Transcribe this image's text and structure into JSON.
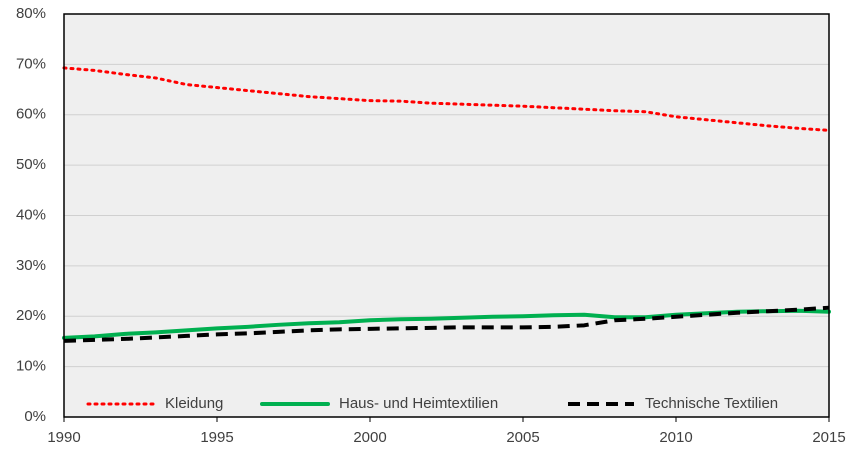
{
  "chart_data": {
    "type": "line",
    "x": [
      1990,
      1991,
      1992,
      1993,
      1994,
      1995,
      1996,
      1997,
      1998,
      1999,
      2000,
      2001,
      2002,
      2003,
      2004,
      2005,
      2006,
      2007,
      2008,
      2009,
      2010,
      2011,
      2012,
      2013,
      2014,
      2015
    ],
    "series": [
      {
        "name": "Kleidung",
        "color": "#ff0000",
        "style": "dotted",
        "values": [
          69.3,
          68.8,
          68.0,
          67.3,
          66.0,
          65.4,
          64.8,
          64.2,
          63.6,
          63.2,
          62.8,
          62.7,
          62.3,
          62.1,
          61.9,
          61.7,
          61.4,
          61.1,
          60.8,
          60.6,
          59.6,
          59.0,
          58.4,
          57.8,
          57.3,
          56.9
        ]
      },
      {
        "name": "Haus- und Heimtextilien",
        "color": "#00b050",
        "style": "solid",
        "values": [
          15.7,
          16.0,
          16.5,
          16.8,
          17.2,
          17.6,
          17.9,
          18.3,
          18.6,
          18.8,
          19.2,
          19.4,
          19.5,
          19.7,
          19.9,
          20.0,
          20.2,
          20.3,
          19.8,
          19.8,
          20.3,
          20.6,
          20.9,
          21.0,
          21.1,
          20.9
        ]
      },
      {
        "name": "Technische Textilien",
        "color": "#000000",
        "style": "dashed",
        "values": [
          15.1,
          15.3,
          15.5,
          15.8,
          16.1,
          16.4,
          16.6,
          16.9,
          17.2,
          17.4,
          17.5,
          17.6,
          17.7,
          17.8,
          17.8,
          17.8,
          17.9,
          18.2,
          19.2,
          19.5,
          19.9,
          20.3,
          20.7,
          21.0,
          21.3,
          21.7
        ]
      }
    ],
    "xlim": [
      1990,
      2015
    ],
    "xticks": [
      1990,
      1995,
      2000,
      2005,
      2010,
      2015
    ],
    "ylim": [
      0,
      80
    ],
    "yticks": [
      {
        "value": 0,
        "label": "0%"
      },
      {
        "value": 10,
        "label": "10%"
      },
      {
        "value": 20,
        "label": "20%"
      },
      {
        "value": 30,
        "label": "30%"
      },
      {
        "value": 40,
        "label": "40%"
      },
      {
        "value": 50,
        "label": "50%"
      },
      {
        "value": 60,
        "label": "60%"
      },
      {
        "value": 70,
        "label": "70%"
      },
      {
        "value": 80,
        "label": "80%"
      }
    ],
    "grid": true,
    "legend": "bottom"
  }
}
